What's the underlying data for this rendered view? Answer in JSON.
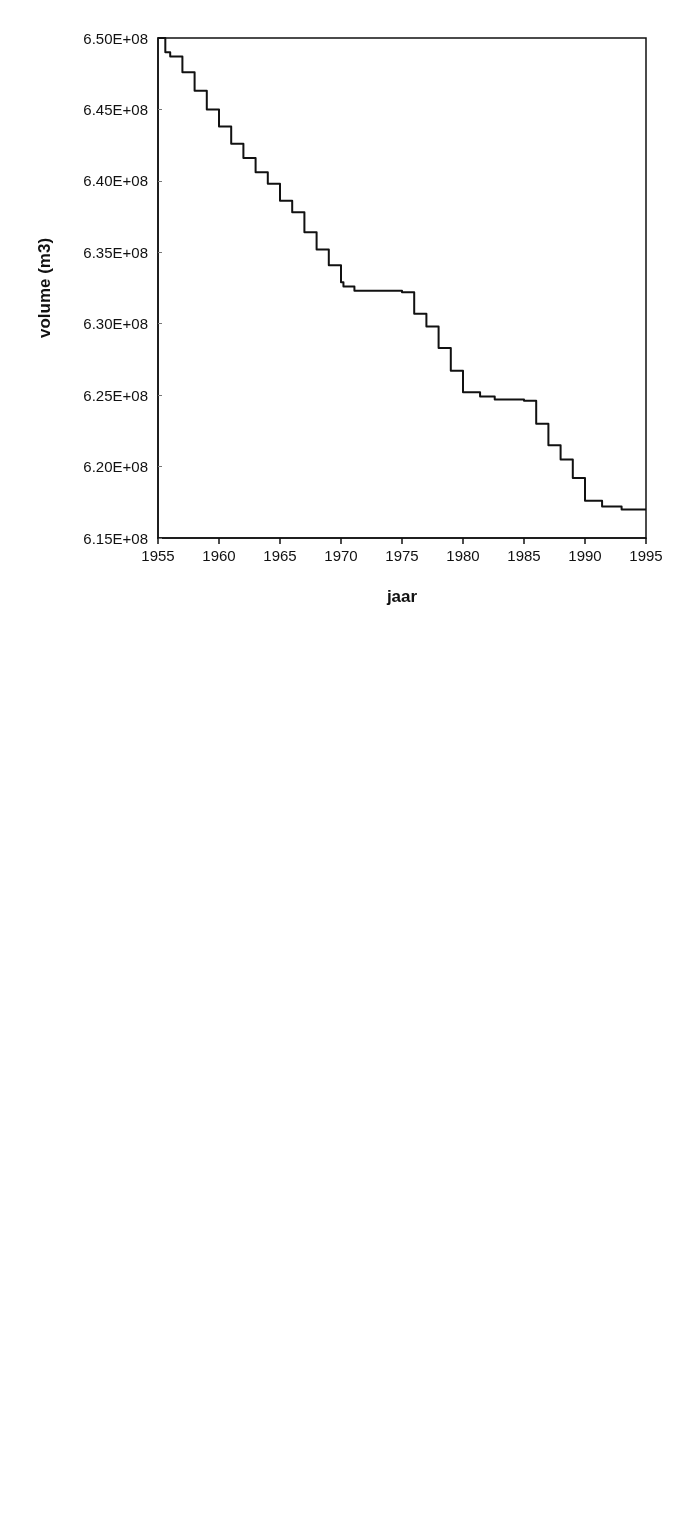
{
  "chart_data": {
    "type": "step",
    "xlabel": "jaar",
    "ylabel": "volume (m3)",
    "xlim": [
      1955,
      1995
    ],
    "xticks": [
      1955,
      1960,
      1965,
      1970,
      1975,
      1980,
      1985,
      1990,
      1995
    ],
    "ylim": [
      615000000,
      650000000
    ],
    "yticks": [
      {
        "value": 615000000,
        "label": "6.15E+08"
      },
      {
        "value": 620000000,
        "label": "6.20E+08"
      },
      {
        "value": 625000000,
        "label": "6.25E+08"
      },
      {
        "value": 630000000,
        "label": "6.30E+08"
      },
      {
        "value": 635000000,
        "label": "6.35E+08"
      },
      {
        "value": 640000000,
        "label": "6.40E+08"
      },
      {
        "value": 645000000,
        "label": "6.45E+08"
      },
      {
        "value": 650000000,
        "label": "6.50E+08"
      }
    ],
    "grid": false,
    "marker": "none",
    "line_style": "solid",
    "series": [
      {
        "color": "#111111",
        "x": [
          1955,
          1955.6,
          1956,
          1957,
          1958,
          1959,
          1960,
          1961,
          1962,
          1963,
          1964,
          1965,
          1966,
          1967,
          1968,
          1969,
          1970,
          1970.2,
          1971.1,
          1975,
          1976,
          1977,
          1978,
          1979,
          1980,
          1981.4,
          1982.6,
          1985,
          1986,
          1987,
          1988,
          1989,
          1990,
          1991.4,
          1993,
          1995
        ],
        "values": [
          650000000,
          649000000,
          648700000,
          647600000,
          646300000,
          645000000,
          643800000,
          642600000,
          641600000,
          640600000,
          639800000,
          638600000,
          637800000,
          636400000,
          635200000,
          634100000,
          632900000,
          632600000,
          632300000,
          632200000,
          630700000,
          629800000,
          628300000,
          626700000,
          625200000,
          624900000,
          624700000,
          624600000,
          623000000,
          621500000,
          620500000,
          619200000,
          617600000,
          617200000,
          617000000,
          617000000
        ]
      }
    ]
  }
}
